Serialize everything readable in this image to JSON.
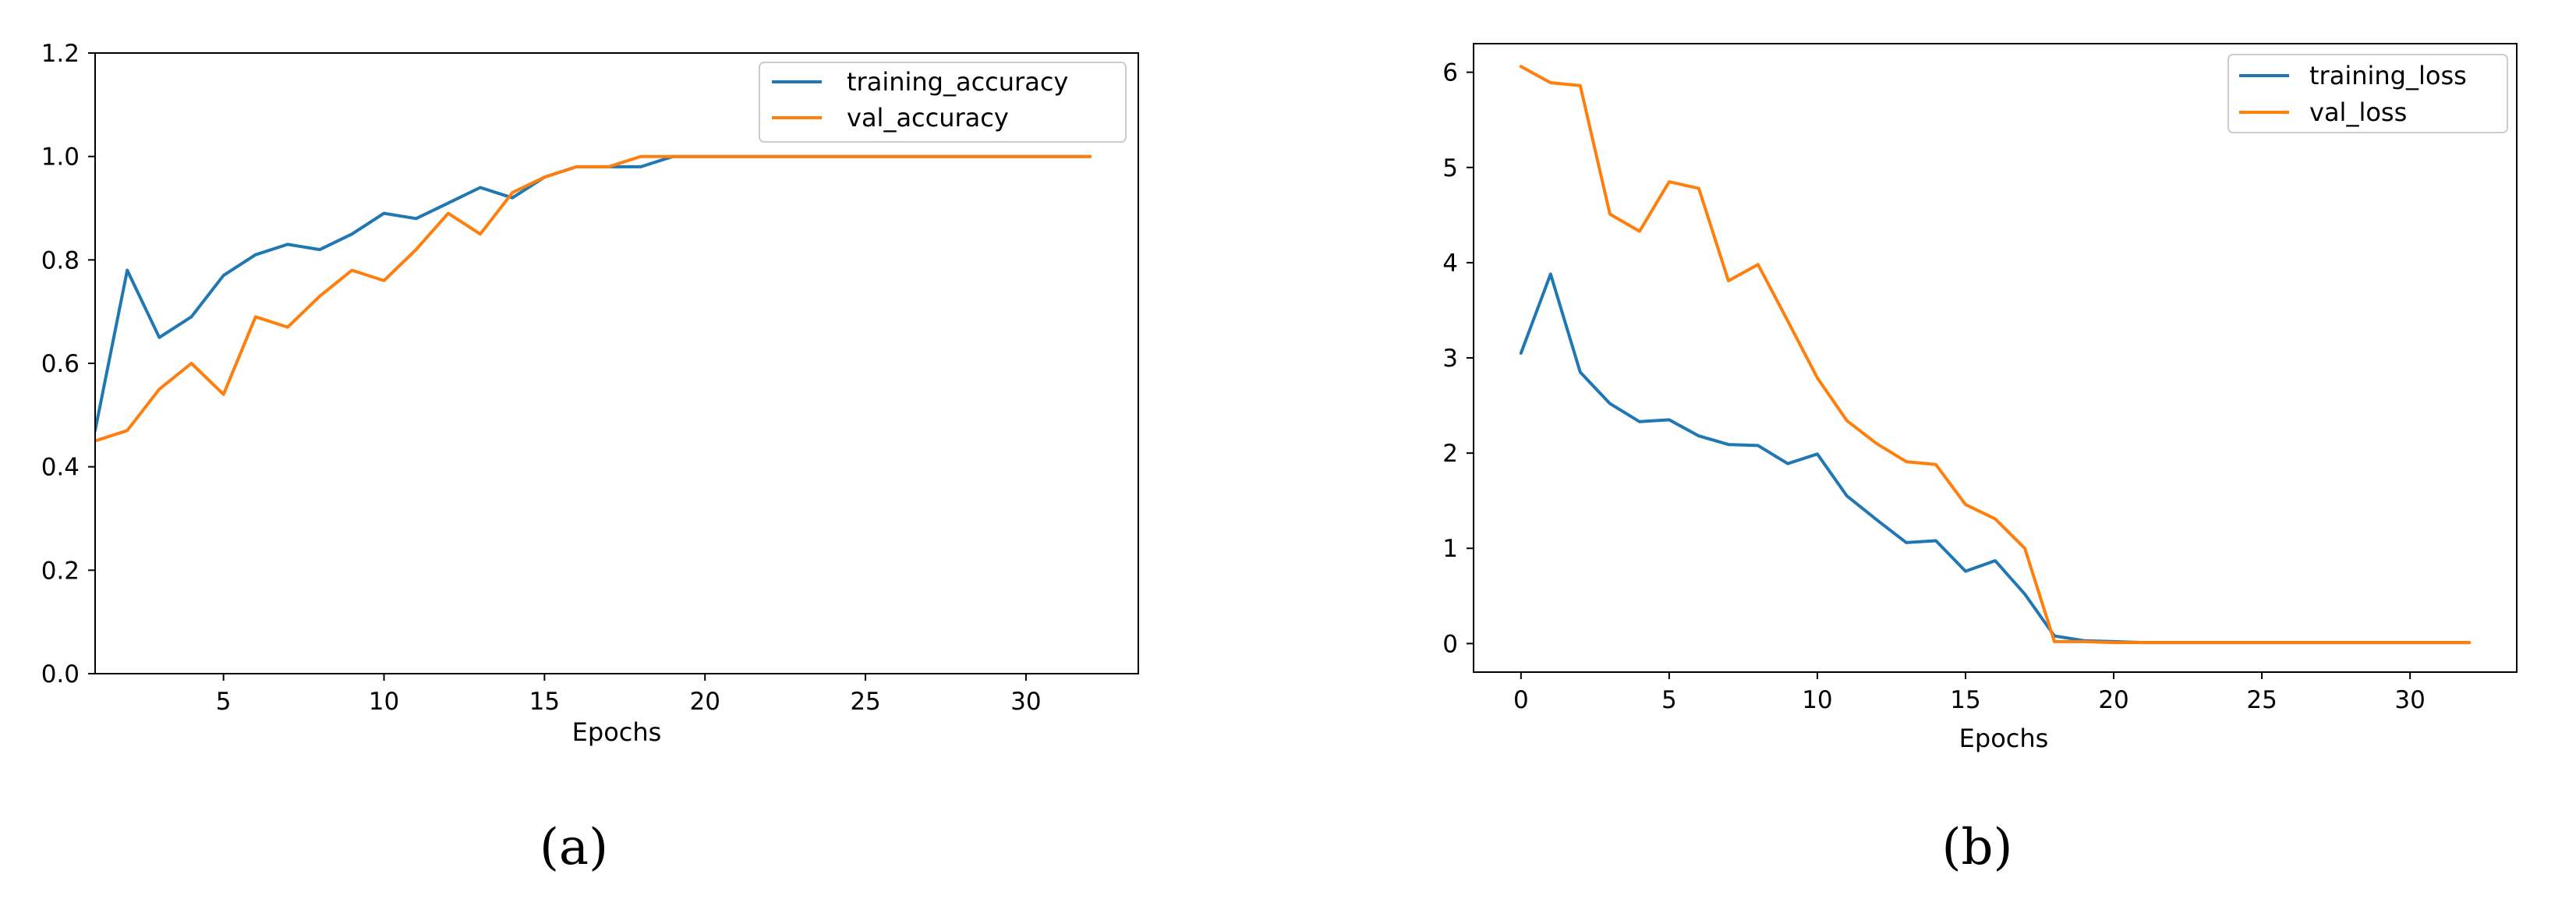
{
  "colors": {
    "blue": "#1f77b4",
    "orange": "#ff7f0e"
  },
  "chart_data": [
    {
      "type": "line",
      "caption": "(a)",
      "title": "",
      "xlabel": "Epochs",
      "ylabel": "",
      "xlim": [
        1,
        33.5
      ],
      "ylim": [
        0.0,
        1.2
      ],
      "xticks": [
        5,
        10,
        15,
        20,
        25,
        30
      ],
      "yticks": [
        0.0,
        0.2,
        0.4,
        0.6,
        0.8,
        1.0,
        1.2
      ],
      "ytick_labels": [
        "0.0",
        "0.2",
        "0.4",
        "0.6",
        "0.8",
        "1.0",
        "1.2"
      ],
      "xtick_labels": [
        "5",
        "10",
        "15",
        "20",
        "25",
        "30"
      ],
      "grid": false,
      "legend_position": "top-right",
      "x": [
        1,
        2,
        3,
        4,
        5,
        6,
        7,
        8,
        9,
        10,
        11,
        12,
        13,
        14,
        15,
        16,
        17,
        18,
        19,
        20,
        21,
        22,
        23,
        24,
        25,
        26,
        27,
        28,
        29,
        30,
        31,
        32
      ],
      "series": [
        {
          "name": "training_accuracy",
          "color": "#1f77b4",
          "values": [
            0.47,
            0.78,
            0.65,
            0.69,
            0.77,
            0.81,
            0.83,
            0.82,
            0.85,
            0.89,
            0.88,
            0.91,
            0.94,
            0.92,
            0.96,
            0.98,
            0.98,
            0.98,
            1.0,
            1.0,
            1.0,
            1.0,
            1.0,
            1.0,
            1.0,
            1.0,
            1.0,
            1.0,
            1.0,
            1.0,
            1.0,
            1.0
          ]
        },
        {
          "name": "val_accuracy",
          "color": "#ff7f0e",
          "values": [
            0.45,
            0.47,
            0.55,
            0.6,
            0.54,
            0.69,
            0.67,
            0.73,
            0.78,
            0.76,
            0.82,
            0.89,
            0.85,
            0.93,
            0.96,
            0.98,
            0.98,
            1.0,
            1.0,
            1.0,
            1.0,
            1.0,
            1.0,
            1.0,
            1.0,
            1.0,
            1.0,
            1.0,
            1.0,
            1.0,
            1.0,
            1.0
          ]
        }
      ]
    },
    {
      "type": "line",
      "caption": "(b)",
      "title": "",
      "xlabel": "Epochs",
      "ylabel": "",
      "xlim": [
        -1.6,
        33.6
      ],
      "ylim": [
        -0.3,
        6.3
      ],
      "xticks": [
        0,
        5,
        10,
        15,
        20,
        25,
        30
      ],
      "yticks": [
        0,
        1,
        2,
        3,
        4,
        5,
        6
      ],
      "ytick_labels": [
        "0",
        "1",
        "2",
        "3",
        "4",
        "5",
        "6"
      ],
      "xtick_labels": [
        "0",
        "5",
        "10",
        "15",
        "20",
        "25",
        "30"
      ],
      "grid": false,
      "legend_position": "top-right",
      "x": [
        0,
        1,
        2,
        3,
        4,
        5,
        6,
        7,
        8,
        9,
        10,
        11,
        12,
        13,
        14,
        15,
        16,
        17,
        18,
        19,
        20,
        21,
        22,
        23,
        24,
        25,
        26,
        27,
        28,
        29,
        30,
        31,
        32
      ],
      "series": [
        {
          "name": "training_loss",
          "color": "#1f77b4",
          "values": [
            3.05,
            3.88,
            2.85,
            2.52,
            2.33,
            2.35,
            2.18,
            2.09,
            2.08,
            1.89,
            1.99,
            1.55,
            1.3,
            1.06,
            1.08,
            0.76,
            0.87,
            0.52,
            0.08,
            0.03,
            0.02,
            0.01,
            0.01,
            0.01,
            0.01,
            0.01,
            0.01,
            0.01,
            0.01,
            0.01,
            0.01,
            0.01,
            0.01
          ]
        },
        {
          "name": "val_loss",
          "color": "#ff7f0e",
          "values": [
            6.06,
            5.89,
            5.86,
            4.51,
            4.33,
            4.85,
            4.78,
            3.81,
            3.98,
            3.39,
            2.79,
            2.34,
            2.1,
            1.91,
            1.88,
            1.46,
            1.31,
            1.0,
            0.02,
            0.02,
            0.01,
            0.01,
            0.01,
            0.01,
            0.01,
            0.01,
            0.01,
            0.01,
            0.01,
            0.01,
            0.01,
            0.01,
            0.01
          ]
        }
      ]
    }
  ]
}
